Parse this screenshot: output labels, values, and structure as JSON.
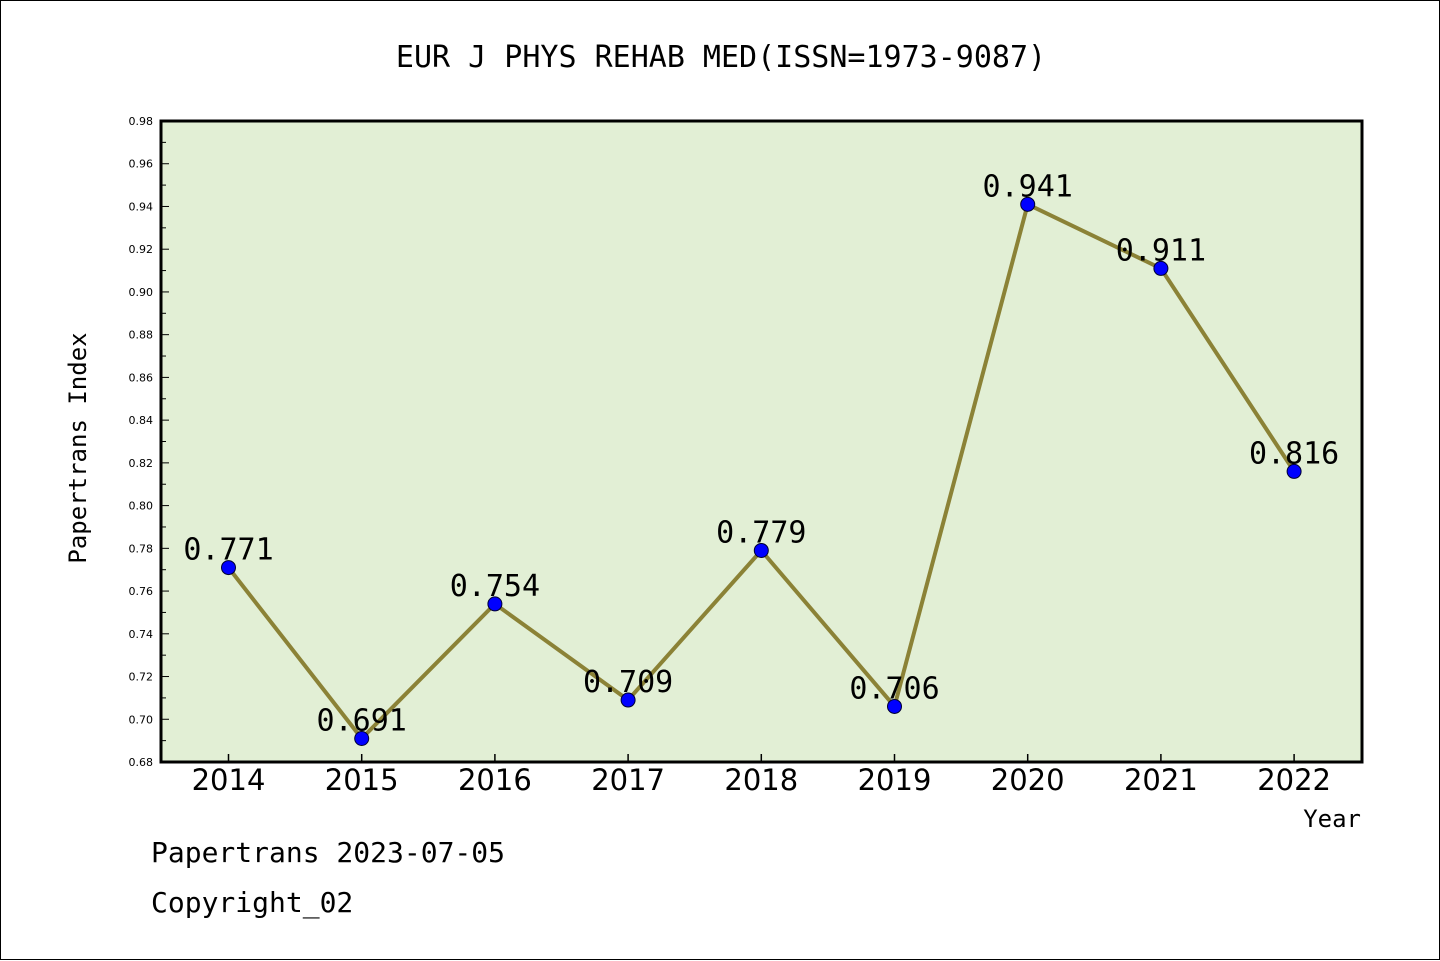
{
  "chart_data": {
    "type": "line",
    "title": "EUR J PHYS REHAB MED(ISSN=1973-9087)",
    "xlabel": "Year",
    "ylabel": "Papertrans Index",
    "categories": [
      "2014",
      "2015",
      "2016",
      "2017",
      "2018",
      "2019",
      "2020",
      "2021",
      "2022"
    ],
    "series": [
      {
        "values": [
          0.771,
          0.691,
          0.754,
          0.709,
          0.779,
          0.706,
          0.941,
          0.911,
          0.816
        ],
        "labels": [
          "0.771",
          "0.691",
          "0.754",
          "0.709",
          "0.779",
          "0.706",
          "0.941",
          "0.911",
          "0.816"
        ]
      }
    ],
    "ylim": [
      0.68,
      0.98
    ],
    "yticks": [
      "0.68",
      "0.70",
      "0.72",
      "0.74",
      "0.76",
      "0.78",
      "0.80",
      "0.82",
      "0.84",
      "0.86",
      "0.88",
      "0.90",
      "0.92",
      "0.94",
      "0.96",
      "0.98"
    ],
    "grid": false,
    "legend": "none",
    "colors": {
      "plot_background": "#e2efd5",
      "line": "#8b8236",
      "marker": "#0000ff"
    }
  },
  "footer": {
    "line1": "Papertrans 2023-07-05",
    "line2": "Copyright_02"
  }
}
